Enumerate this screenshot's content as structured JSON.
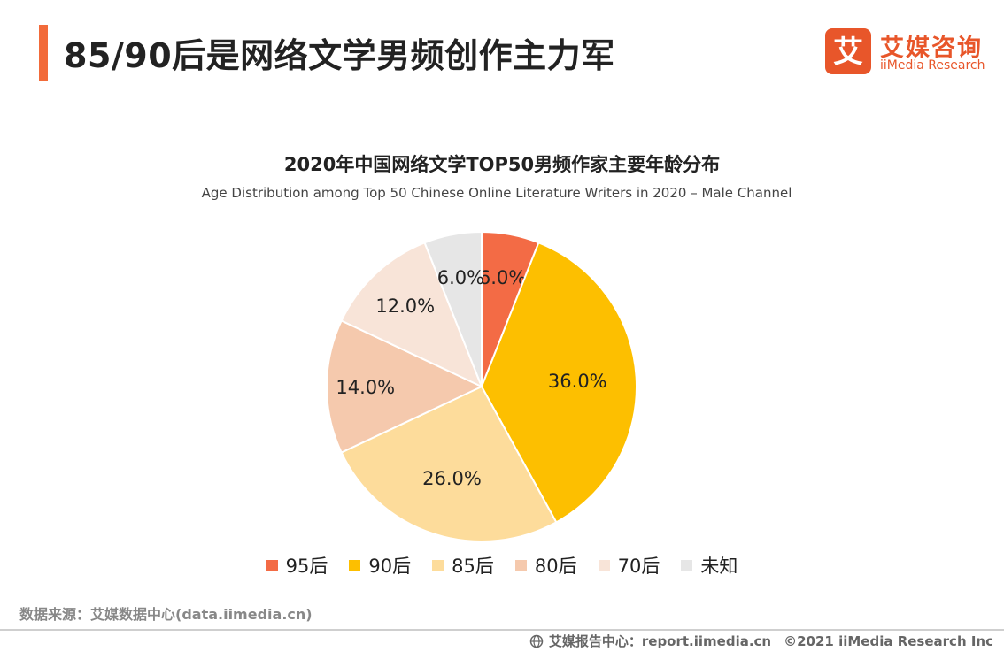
{
  "header": {
    "title": "85/90后是网络文学男频创作主力军"
  },
  "logo": {
    "cn": "艾媒咨询",
    "en": "iiMedia Research",
    "mark_char": "艾"
  },
  "chart_data": {
    "type": "pie",
    "title": "2020年中国网络文学TOP50男频作家主要年龄分布",
    "subtitle": "Age Distribution among Top 50 Chinese Online Literature Writers in 2020 – Male Channel",
    "categories": [
      "95后",
      "90后",
      "85后",
      "80后",
      "70后",
      "未知"
    ],
    "values": [
      6.0,
      36.0,
      26.0,
      14.0,
      12.0,
      6.0
    ],
    "labels": [
      "6.0%",
      "36.0%",
      "26.0%",
      "14.0%",
      "12.0%",
      "6.0%"
    ],
    "colors": [
      "#f36b45",
      "#fdbf00",
      "#fddc9b",
      "#f5c9ad",
      "#f8e4d8",
      "#e6e6e6"
    ],
    "legend_position": "bottom"
  },
  "source": {
    "text": "数据来源：艾媒数据中心(data.iimedia.cn)"
  },
  "footer": {
    "center": "艾媒报告中心：report.iimedia.cn",
    "copyright": "©2021  iiMedia Research  Inc"
  }
}
